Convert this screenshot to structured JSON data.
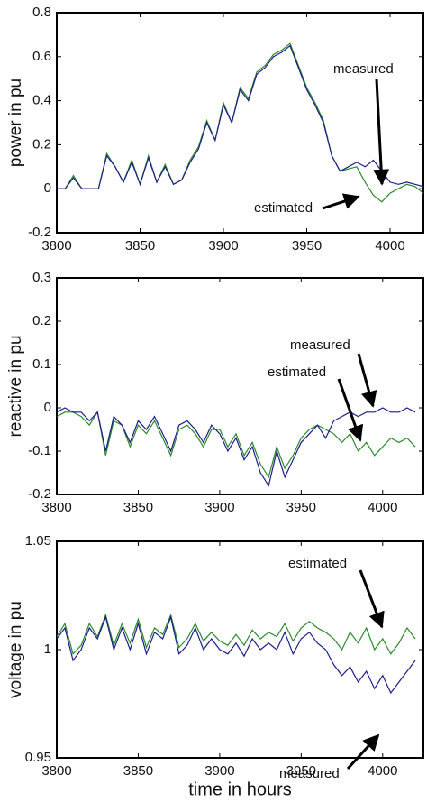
{
  "chart_data": [
    {
      "type": "line",
      "ylabel": "power in pu",
      "x": [
        3800,
        3805,
        3810,
        3815,
        3820,
        3825,
        3830,
        3835,
        3840,
        3845,
        3850,
        3855,
        3860,
        3865,
        3870,
        3875,
        3880,
        3885,
        3890,
        3895,
        3900,
        3905,
        3910,
        3915,
        3920,
        3925,
        3930,
        3935,
        3940,
        3945,
        3950,
        3955,
        3960,
        3965,
        3970,
        3975,
        3980,
        3985,
        3990,
        3995,
        4000,
        4005,
        4010,
        4015,
        4020
      ],
      "xlim": [
        3800,
        4020
      ],
      "xticks": [
        3800,
        3850,
        3900,
        3950,
        4000
      ],
      "ylim": [
        -0.2,
        0.8
      ],
      "yticks": [
        -0.2,
        0,
        0.2,
        0.4,
        0.6,
        0.8
      ],
      "series": [
        {
          "name": "measured",
          "color": "#1c1c8a",
          "values": [
            0,
            0,
            0.05,
            0,
            0,
            0,
            0.15,
            0.1,
            0.03,
            0.12,
            0.02,
            0.14,
            0.03,
            0.1,
            0.02,
            0.04,
            0.12,
            0.18,
            0.3,
            0.22,
            0.38,
            0.3,
            0.45,
            0.4,
            0.52,
            0.55,
            0.6,
            0.62,
            0.65,
            0.55,
            0.45,
            0.38,
            0.3,
            0.15,
            0.08,
            0.1,
            0.12,
            0.1,
            0.13,
            0.08,
            0.03,
            0.02,
            0.03,
            0.02,
            0.01
          ]
        },
        {
          "name": "estimated",
          "color": "#2a8a2a",
          "values": [
            0,
            0,
            0.06,
            0,
            0,
            0,
            0.16,
            0.1,
            0.03,
            0.13,
            0.02,
            0.15,
            0.03,
            0.11,
            0.02,
            0.04,
            0.13,
            0.19,
            0.31,
            0.22,
            0.39,
            0.3,
            0.46,
            0.41,
            0.53,
            0.56,
            0.61,
            0.63,
            0.66,
            0.56,
            0.46,
            0.39,
            0.31,
            0.15,
            0.08,
            0.09,
            0.1,
            0.03,
            -0.03,
            -0.06,
            -0.02,
            0,
            0.02,
            0.01,
            -0.02
          ]
        }
      ]
    },
    {
      "type": "line",
      "ylabel": "reactive in pu",
      "x": [
        3800,
        3805,
        3810,
        3815,
        3820,
        3825,
        3830,
        3835,
        3840,
        3845,
        3850,
        3855,
        3860,
        3865,
        3870,
        3875,
        3880,
        3885,
        3890,
        3895,
        3900,
        3905,
        3910,
        3915,
        3920,
        3925,
        3930,
        3935,
        3940,
        3945,
        3950,
        3955,
        3960,
        3965,
        3970,
        3975,
        3980,
        3985,
        3990,
        3995,
        4000,
        4005,
        4010,
        4015,
        4020
      ],
      "xlim": [
        3800,
        4025
      ],
      "xticks": [
        3800,
        3850,
        3900,
        3950,
        4000
      ],
      "ylim": [
        -0.2,
        0.3
      ],
      "yticks": [
        -0.2,
        -0.1,
        0,
        0.1,
        0.2,
        0.3
      ],
      "series": [
        {
          "name": "measured",
          "color": "#1c1c8a",
          "values": [
            -0.01,
            0,
            -0.01,
            -0.01,
            -0.03,
            -0.01,
            -0.1,
            -0.02,
            -0.04,
            -0.08,
            -0.03,
            -0.05,
            -0.02,
            -0.06,
            -0.1,
            -0.04,
            -0.03,
            -0.05,
            -0.08,
            -0.04,
            -0.06,
            -0.1,
            -0.07,
            -0.12,
            -0.09,
            -0.15,
            -0.18,
            -0.1,
            -0.16,
            -0.12,
            -0.08,
            -0.06,
            -0.04,
            -0.07,
            -0.03,
            -0.02,
            -0.01,
            -0.02,
            -0.01,
            -0.01,
            0,
            -0.01,
            -0.01,
            0,
            -0.01
          ]
        },
        {
          "name": "estimated",
          "color": "#2a8a2a",
          "values": [
            -0.02,
            -0.01,
            -0.01,
            -0.02,
            -0.04,
            -0.01,
            -0.11,
            -0.03,
            -0.04,
            -0.09,
            -0.04,
            -0.06,
            -0.03,
            -0.07,
            -0.11,
            -0.05,
            -0.04,
            -0.06,
            -0.09,
            -0.05,
            -0.05,
            -0.09,
            -0.06,
            -0.11,
            -0.08,
            -0.13,
            -0.16,
            -0.09,
            -0.14,
            -0.11,
            -0.07,
            -0.05,
            -0.04,
            -0.05,
            -0.06,
            -0.08,
            -0.06,
            -0.1,
            -0.08,
            -0.11,
            -0.09,
            -0.07,
            -0.08,
            -0.07,
            -0.09
          ]
        }
      ]
    },
    {
      "type": "line",
      "ylabel": "voltage in pu",
      "xlabel": "time in hours",
      "x": [
        3800,
        3805,
        3810,
        3815,
        3820,
        3825,
        3830,
        3835,
        3840,
        3845,
        3850,
        3855,
        3860,
        3865,
        3870,
        3875,
        3880,
        3885,
        3890,
        3895,
        3900,
        3905,
        3910,
        3915,
        3920,
        3925,
        3930,
        3935,
        3940,
        3945,
        3950,
        3955,
        3960,
        3965,
        3970,
        3975,
        3980,
        3985,
        3990,
        3995,
        4000,
        4005,
        4010,
        4015,
        4020
      ],
      "xlim": [
        3800,
        4025
      ],
      "xticks": [
        3800,
        3850,
        3900,
        3950,
        4000
      ],
      "ylim": [
        0.95,
        1.05
      ],
      "yticks": [
        0.95,
        1,
        1.05
      ],
      "series": [
        {
          "name": "measured",
          "color": "#1c1c8a",
          "values": [
            1.005,
            1.01,
            0.995,
            1.0,
            1.01,
            1.005,
            1.015,
            1.0,
            1.01,
            1.0,
            1.012,
            0.998,
            1.008,
            1.005,
            1.015,
            0.998,
            1.002,
            1.01,
            1.0,
            1.005,
            1.0,
            0.998,
            1.003,
            0.997,
            1.005,
            1.0,
            1.003,
            1.0,
            1.008,
            0.998,
            1.005,
            1.008,
            1.003,
            1.0,
            0.993,
            0.988,
            0.992,
            0.985,
            0.99,
            0.982,
            0.988,
            0.98,
            0.985,
            0.99,
            0.995
          ]
        },
        {
          "name": "estimated",
          "color": "#2a8a2a",
          "values": [
            1.006,
            1.012,
            0.998,
            1.002,
            1.012,
            1.006,
            1.016,
            1.002,
            1.012,
            1.003,
            1.014,
            1.001,
            1.01,
            1.007,
            1.016,
            1.001,
            1.005,
            1.012,
            1.004,
            1.008,
            1.004,
            1.002,
            1.007,
            1.002,
            1.009,
            1.005,
            1.008,
            1.006,
            1.012,
            1.004,
            1.01,
            1.013,
            1.01,
            1.008,
            1.005,
            1.0,
            1.008,
            1.003,
            1.01,
            1.0,
            1.005,
            0.998,
            1.003,
            1.01,
            1.005
          ]
        }
      ]
    }
  ]
}
